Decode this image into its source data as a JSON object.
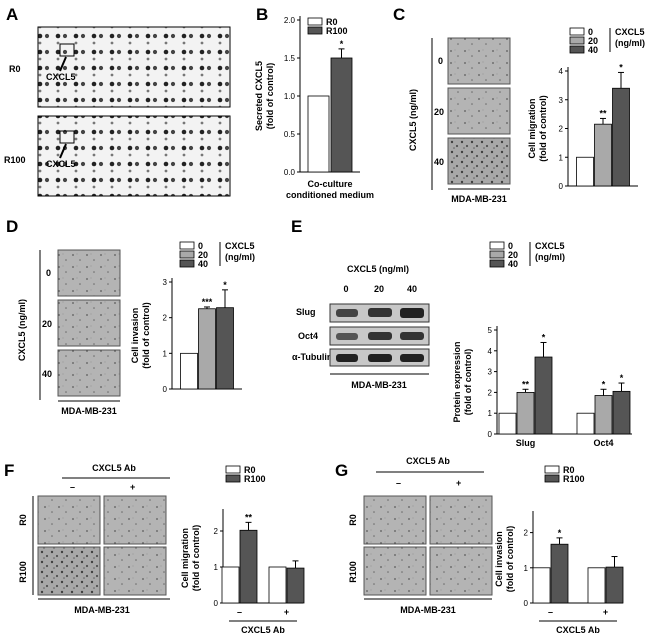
{
  "panels": {
    "A": {
      "label": "A",
      "rows": [
        "R0",
        "R100"
      ],
      "arrow_label": "CXCL5"
    },
    "C": {
      "label": "C",
      "ylabel_side": "CXCL5 (ng/ml)",
      "rows": [
        "0",
        "20",
        "40"
      ],
      "cell_line": "MDA-MB-231"
    },
    "D": {
      "label": "D",
      "ylabel_side": "CXCL5 (ng/ml)",
      "rows": [
        "0",
        "20",
        "40"
      ],
      "cell_line": "MDA-MB-231"
    },
    "E": {
      "label": "E",
      "blot_title": "CXCL5 (ng/ml)",
      "lanes": [
        "0",
        "20",
        "40"
      ],
      "bands": [
        "Slug",
        "Oct4",
        "α-Tubulin"
      ],
      "cell_line": "MDA-MB-231"
    },
    "F": {
      "label": "F",
      "ab_title": "CXCL5 Ab",
      "ab_cols": [
        "–",
        "+"
      ],
      "rows": [
        "R0",
        "R100"
      ],
      "cell_line": "MDA-MB-231"
    },
    "G": {
      "label": "G",
      "ab_title": "CXCL5 Ab",
      "ab_cols": [
        "–",
        "+"
      ],
      "rows": [
        "R0",
        "R100"
      ],
      "cell_line": "MDA-MB-231"
    }
  },
  "colors": {
    "white": "#ffffff",
    "gray": "#a9a9a9",
    "dark": "#555555"
  },
  "chart_data": [
    {
      "id": "B",
      "type": "bar",
      "panel_label": "B",
      "ylabel": "Secreted CXCL5 (fold of control)",
      "xlabel": "Co-culture conditioned medium",
      "ylim": [
        0,
        2
      ],
      "yticks": [
        "0.0",
        "0.5",
        "1.0",
        "1.5",
        "2.0"
      ],
      "legend": [
        "R0",
        "R100"
      ],
      "legend_title": "",
      "categories": [
        ""
      ],
      "series": [
        {
          "name": "R0",
          "values": [
            1.0
          ],
          "err": [
            0
          ]
        },
        {
          "name": "R100",
          "values": [
            1.5
          ],
          "err": [
            0.12
          ]
        }
      ],
      "sig": [
        [
          "",
          "*"
        ]
      ]
    },
    {
      "id": "C",
      "type": "bar",
      "panel_label": "",
      "ylabel": "Cell migration (fold of control)",
      "xlabel": "",
      "ylim": [
        0,
        4
      ],
      "yticks": [
        "0",
        "1",
        "2",
        "3",
        "4"
      ],
      "legend": [
        "0",
        "20",
        "40"
      ],
      "legend_title": "CXCL5",
      "legend_unit": "(ng/ml)",
      "categories": [
        ""
      ],
      "series": [
        {
          "name": "0",
          "values": [
            1.0
          ],
          "err": [
            0
          ]
        },
        {
          "name": "20",
          "values": [
            2.15
          ],
          "err": [
            0.2
          ]
        },
        {
          "name": "40",
          "values": [
            3.4
          ],
          "err": [
            0.55
          ]
        }
      ],
      "sig": [
        [
          "",
          "**",
          "*"
        ]
      ]
    },
    {
      "id": "D",
      "type": "bar",
      "panel_label": "",
      "ylabel": "Cell invasion (fold of control)",
      "xlabel": "",
      "ylim": [
        0,
        3
      ],
      "yticks": [
        "0",
        "1",
        "2",
        "3"
      ],
      "legend": [
        "0",
        "20",
        "40"
      ],
      "legend_title": "CXCL5",
      "legend_unit": "(ng/ml)",
      "categories": [
        ""
      ],
      "series": [
        {
          "name": "0",
          "values": [
            1.0
          ],
          "err": [
            0
          ]
        },
        {
          "name": "20",
          "values": [
            2.25
          ],
          "err": [
            0.05
          ]
        },
        {
          "name": "40",
          "values": [
            2.28
          ],
          "err": [
            0.5
          ]
        }
      ],
      "sig": [
        [
          "",
          "***",
          "*"
        ]
      ]
    },
    {
      "id": "E",
      "type": "bar",
      "panel_label": "",
      "ylabel": "Protein expression (fold of control)",
      "xlabel": "",
      "ylim": [
        0,
        5
      ],
      "yticks": [
        "0",
        "1",
        "2",
        "3",
        "4",
        "5"
      ],
      "legend": [
        "0",
        "20",
        "40"
      ],
      "legend_title": "CXCL5",
      "legend_unit": "(ng/ml)",
      "categories": [
        "Slug",
        "Oct4"
      ],
      "series": [
        {
          "name": "0",
          "values": [
            1.0,
            1.0
          ],
          "err": [
            0,
            0
          ]
        },
        {
          "name": "20",
          "values": [
            2.0,
            1.85
          ],
          "err": [
            0.15,
            0.3
          ]
        },
        {
          "name": "40",
          "values": [
            3.7,
            2.05
          ],
          "err": [
            0.7,
            0.4
          ]
        }
      ],
      "sig": [
        [
          "",
          "**",
          "*"
        ],
        [
          "",
          "*",
          "*"
        ]
      ]
    },
    {
      "id": "F",
      "type": "bar",
      "panel_label": "",
      "ylabel": "Cell migration (fold of control)",
      "xlabel": "CXCL5 Ab",
      "ylim": [
        0,
        2.5
      ],
      "yticks": [
        "0",
        "1",
        "2"
      ],
      "legend": [
        "R0",
        "R100"
      ],
      "legend_title": "",
      "categories": [
        "–",
        "+"
      ],
      "series": [
        {
          "name": "R0",
          "values": [
            1.0,
            1.0
          ],
          "err": [
            0,
            0
          ]
        },
        {
          "name": "R100",
          "values": [
            2.02,
            0.97
          ],
          "err": [
            0.22,
            0.2
          ]
        }
      ],
      "sig": [
        [
          "",
          "**"
        ],
        [
          "",
          ""
        ]
      ]
    },
    {
      "id": "G",
      "type": "bar",
      "panel_label": "",
      "ylabel": "Cell invasion (fold of control)",
      "xlabel": "CXCL5 Ab",
      "ylim": [
        0,
        2.5
      ],
      "yticks": [
        "0",
        "1",
        "2"
      ],
      "legend": [
        "R0",
        "R100"
      ],
      "legend_title": "",
      "categories": [
        "–",
        "+"
      ],
      "series": [
        {
          "name": "R0",
          "values": [
            1.0,
            1.0
          ],
          "err": [
            0,
            0
          ]
        },
        {
          "name": "R100",
          "values": [
            1.67,
            1.02
          ],
          "err": [
            0.18,
            0.3
          ]
        }
      ],
      "sig": [
        [
          "",
          "*"
        ],
        [
          "",
          ""
        ]
      ]
    }
  ]
}
